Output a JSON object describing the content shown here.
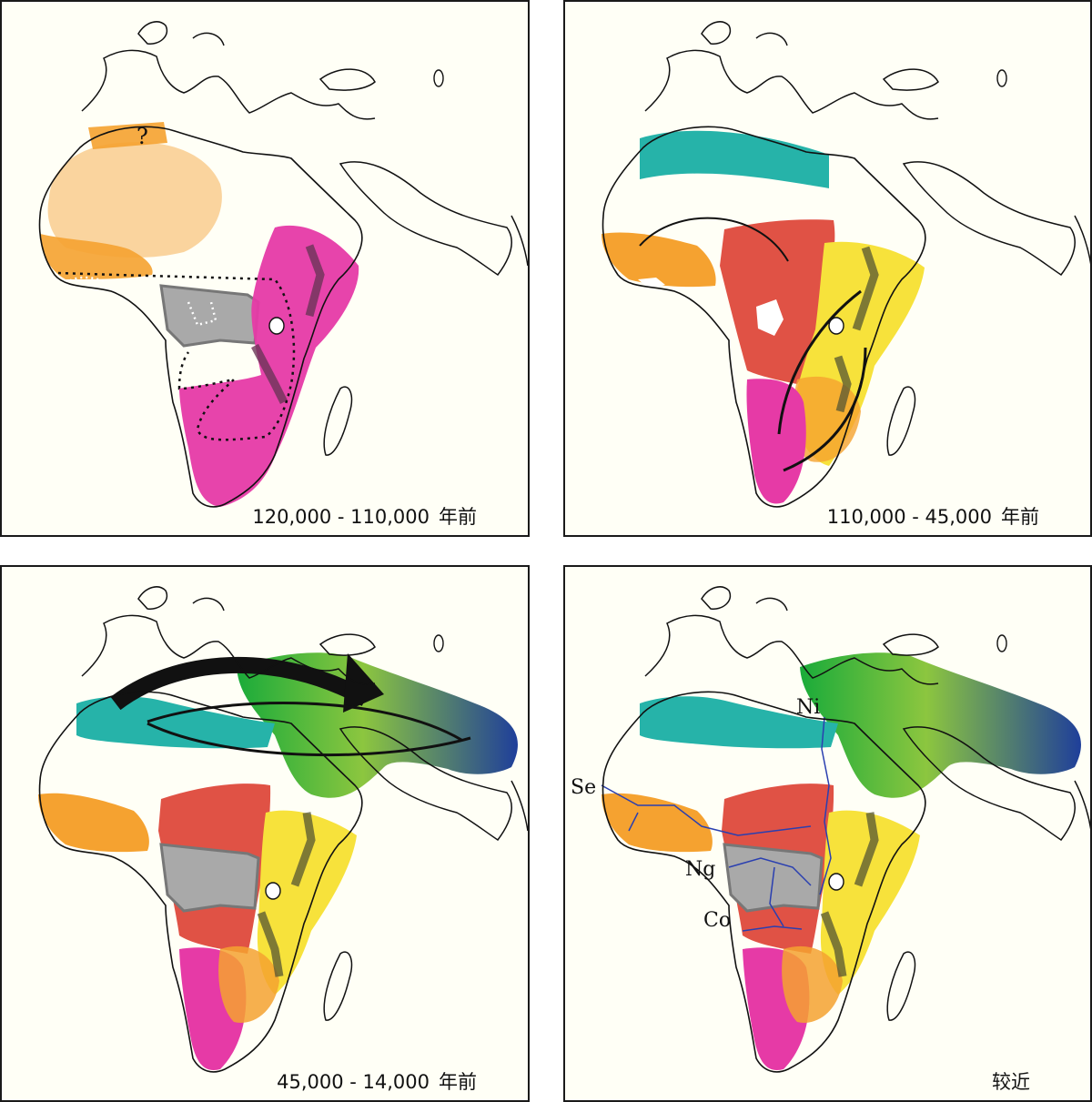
{
  "panels": [
    {
      "id": "p1",
      "caption": "120,000 - 110,000",
      "unit": "年前",
      "question_mark": "?"
    },
    {
      "id": "p2",
      "caption": "110,000 - 45,000",
      "unit": "年前"
    },
    {
      "id": "p3",
      "caption": "45,000 - 14,000",
      "unit": "年前"
    },
    {
      "id": "p4",
      "caption": "较近",
      "unit": "",
      "river_labels": {
        "nile": "Ni",
        "senegal": "Se",
        "niger": "Ng",
        "congo": "Co"
      }
    }
  ],
  "colors": {
    "background": "#fffff6",
    "orange": "#f5a230",
    "light_orange": "#f9cf95",
    "magenta": "#e63aa6",
    "gray": "#a9a9a9",
    "red": "#e05245",
    "yellow": "#f7e23b",
    "teal": "#26b3a9",
    "green": "#4cbf3a",
    "lime": "#8cc63f",
    "blue": "#1f3f9a",
    "river": "#2a3fb0",
    "rift": "#555533"
  }
}
